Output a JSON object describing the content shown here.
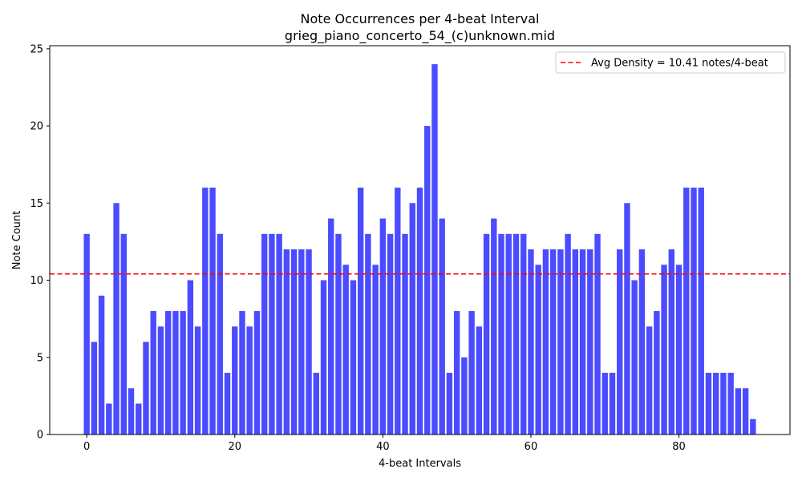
{
  "chart_data": {
    "type": "bar",
    "title": "Note Occurrences per 4-beat Interval",
    "subtitle": "grieg_piano_concerto_54_(c)unknown.mid",
    "xlabel": "4-beat Intervals",
    "ylabel": "Note Count",
    "xlim": [
      -5,
      95
    ],
    "ylim": [
      0,
      25.2
    ],
    "xticks": [
      0,
      20,
      40,
      60,
      80
    ],
    "yticks": [
      0,
      5,
      10,
      15,
      20,
      25
    ],
    "x": [
      0,
      1,
      2,
      3,
      4,
      5,
      6,
      7,
      8,
      9,
      10,
      11,
      12,
      13,
      14,
      15,
      16,
      17,
      18,
      19,
      20,
      21,
      22,
      23,
      24,
      25,
      26,
      27,
      28,
      29,
      30,
      31,
      32,
      33,
      34,
      35,
      36,
      37,
      38,
      39,
      40,
      41,
      42,
      43,
      44,
      45,
      46,
      47,
      48,
      49,
      50,
      51,
      52,
      53,
      54,
      55,
      56,
      57,
      58,
      59,
      60,
      61,
      62,
      63,
      64,
      65,
      66,
      67,
      68,
      69,
      70,
      71,
      72,
      73,
      74,
      75,
      76,
      77,
      78,
      79,
      80,
      81,
      82,
      83,
      84,
      85,
      86,
      87,
      88,
      89,
      90
    ],
    "values": [
      13,
      6,
      9,
      2,
      15,
      13,
      3,
      2,
      6,
      8,
      7,
      8,
      8,
      8,
      10,
      7,
      16,
      16,
      13,
      4,
      7,
      8,
      7,
      8,
      13,
      13,
      13,
      12,
      12,
      12,
      12,
      4,
      10,
      14,
      13,
      11,
      10,
      16,
      13,
      11,
      14,
      13,
      16,
      13,
      15,
      16,
      20,
      24,
      14,
      4,
      8,
      5,
      8,
      7,
      13,
      14,
      13,
      13,
      13,
      13,
      12,
      11,
      12,
      12,
      12,
      13,
      12,
      12,
      12,
      13,
      4,
      4,
      12,
      15,
      10,
      12,
      7,
      8,
      11,
      12,
      11,
      16,
      16,
      16,
      4,
      4,
      4,
      4,
      3,
      3,
      1
    ],
    "bar_color": "#4b4bff",
    "grid": false,
    "avg_line": {
      "value": 10.41,
      "color": "#ff0000",
      "style": "dashed",
      "label": "Avg Density = 10.41 notes/4-beat"
    },
    "legend_position": "top-right"
  }
}
